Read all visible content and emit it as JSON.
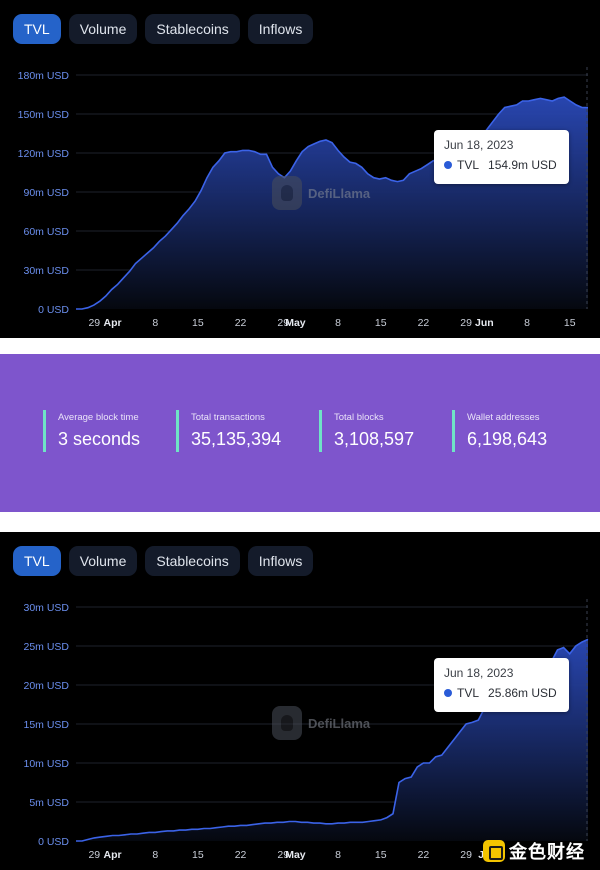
{
  "tabs": [
    {
      "label": "TVL",
      "active": true
    },
    {
      "label": "Volume",
      "active": false
    },
    {
      "label": "Stablecoins",
      "active": false
    },
    {
      "label": "Inflows",
      "active": false
    }
  ],
  "watermark": "DefiLlama",
  "colors": {
    "line": "#3b63e8",
    "fill_top": "#2a49b8",
    "fill_bottom": "#05080f",
    "accent_tab": "#2563c9",
    "stats_bg": "#7e55cc",
    "stat_bar": "#6fe3c6"
  },
  "stats": [
    {
      "label": "Average block time",
      "value": "3 seconds"
    },
    {
      "label": "Total transactions",
      "value": "35,135,394"
    },
    {
      "label": "Total blocks",
      "value": "3,108,597"
    },
    {
      "label": "Wallet addresses",
      "value": "6,198,643"
    }
  ],
  "corner_logo": "金色财经",
  "chart_data": [
    {
      "type": "area",
      "series": [
        {
          "name": "TVL",
          "values_m_usd": [
            0,
            0,
            1,
            3,
            6,
            10,
            15,
            19,
            24,
            29,
            35,
            39,
            43,
            47,
            52,
            56,
            61,
            66,
            72,
            77,
            83,
            91,
            101,
            109,
            114,
            120,
            121,
            121,
            122,
            122,
            121,
            119,
            119,
            109,
            104,
            101,
            106,
            114,
            121,
            125,
            127,
            129,
            130,
            128,
            122,
            117,
            113,
            112,
            109,
            104,
            101,
            100,
            101,
            99,
            98,
            99,
            104,
            106,
            108,
            111,
            114,
            115,
            116,
            119,
            120,
            123,
            124,
            127,
            132,
            138,
            144,
            150,
            155,
            156,
            157,
            160,
            160,
            161,
            162,
            161,
            160,
            162,
            163,
            160,
            157,
            155,
            154.9
          ]
        }
      ],
      "y_ticks": [
        "0 USD",
        "30m USD",
        "60m USD",
        "90m USD",
        "120m USD",
        "150m USD",
        "180m USD"
      ],
      "ylim": [
        0,
        180
      ],
      "x_ticks": [
        {
          "label": "29",
          "bold": false,
          "day": 3
        },
        {
          "label": "Apr",
          "bold": true,
          "day": 6
        },
        {
          "label": "8",
          "bold": false,
          "day": 13
        },
        {
          "label": "15",
          "bold": false,
          "day": 20
        },
        {
          "label": "22",
          "bold": false,
          "day": 27
        },
        {
          "label": "29",
          "bold": false,
          "day": 34
        },
        {
          "label": "May",
          "bold": true,
          "day": 36
        },
        {
          "label": "8",
          "bold": false,
          "day": 43
        },
        {
          "label": "15",
          "bold": false,
          "day": 50
        },
        {
          "label": "22",
          "bold": false,
          "day": 57
        },
        {
          "label": "29",
          "bold": false,
          "day": 64
        },
        {
          "label": "Jun",
          "bold": true,
          "day": 67
        },
        {
          "label": "8",
          "bold": false,
          "day": 74
        },
        {
          "label": "15",
          "bold": false,
          "day": 81
        }
      ],
      "x_days_span": 84,
      "tooltip": {
        "date": "Jun 18, 2023",
        "series": "TVL",
        "value": "154.9m USD"
      }
    },
    {
      "type": "area",
      "series": [
        {
          "name": "TVL",
          "values_m_usd": [
            0,
            0,
            0.2,
            0.4,
            0.5,
            0.6,
            0.7,
            0.7,
            0.8,
            0.9,
            0.9,
            1.0,
            1.1,
            1.1,
            1.2,
            1.3,
            1.3,
            1.4,
            1.4,
            1.5,
            1.5,
            1.6,
            1.6,
            1.7,
            1.8,
            1.9,
            1.9,
            2.0,
            2.0,
            2.1,
            2.2,
            2.3,
            2.3,
            2.4,
            2.4,
            2.5,
            2.5,
            2.4,
            2.4,
            2.3,
            2.3,
            2.2,
            2.2,
            2.3,
            2.3,
            2.4,
            2.4,
            2.4,
            2.5,
            2.6,
            2.7,
            3.0,
            3.5,
            7.5,
            8.0,
            8.2,
            9.5,
            10.0,
            10.0,
            10.8,
            11.0,
            12.0,
            13.0,
            14.0,
            15.0,
            15.2,
            15.5,
            17.0,
            18.5,
            20.0,
            21.5,
            21.0,
            21.5,
            21.2,
            22.0,
            22.5,
            22.8,
            22.9,
            23.0,
            24.5,
            24.8,
            24.0,
            25.0,
            25.5,
            25.86
          ]
        }
      ],
      "y_ticks": [
        "0 USD",
        "5m USD",
        "10m USD",
        "15m USD",
        "20m USD",
        "25m USD",
        "30m USD"
      ],
      "ylim": [
        0,
        30
      ],
      "x_ticks": [
        {
          "label": "29",
          "bold": false,
          "day": 3
        },
        {
          "label": "Apr",
          "bold": true,
          "day": 6
        },
        {
          "label": "8",
          "bold": false,
          "day": 13
        },
        {
          "label": "15",
          "bold": false,
          "day": 20
        },
        {
          "label": "22",
          "bold": false,
          "day": 27
        },
        {
          "label": "29",
          "bold": false,
          "day": 34
        },
        {
          "label": "May",
          "bold": true,
          "day": 36
        },
        {
          "label": "8",
          "bold": false,
          "day": 43
        },
        {
          "label": "15",
          "bold": false,
          "day": 50
        },
        {
          "label": "22",
          "bold": false,
          "day": 57
        },
        {
          "label": "29",
          "bold": false,
          "day": 64
        },
        {
          "label": "Ju",
          "bold": true,
          "day": 67
        }
      ],
      "x_days_span": 84,
      "tooltip": {
        "date": "Jun 18, 2023",
        "series": "TVL",
        "value": "25.86m USD"
      }
    }
  ]
}
